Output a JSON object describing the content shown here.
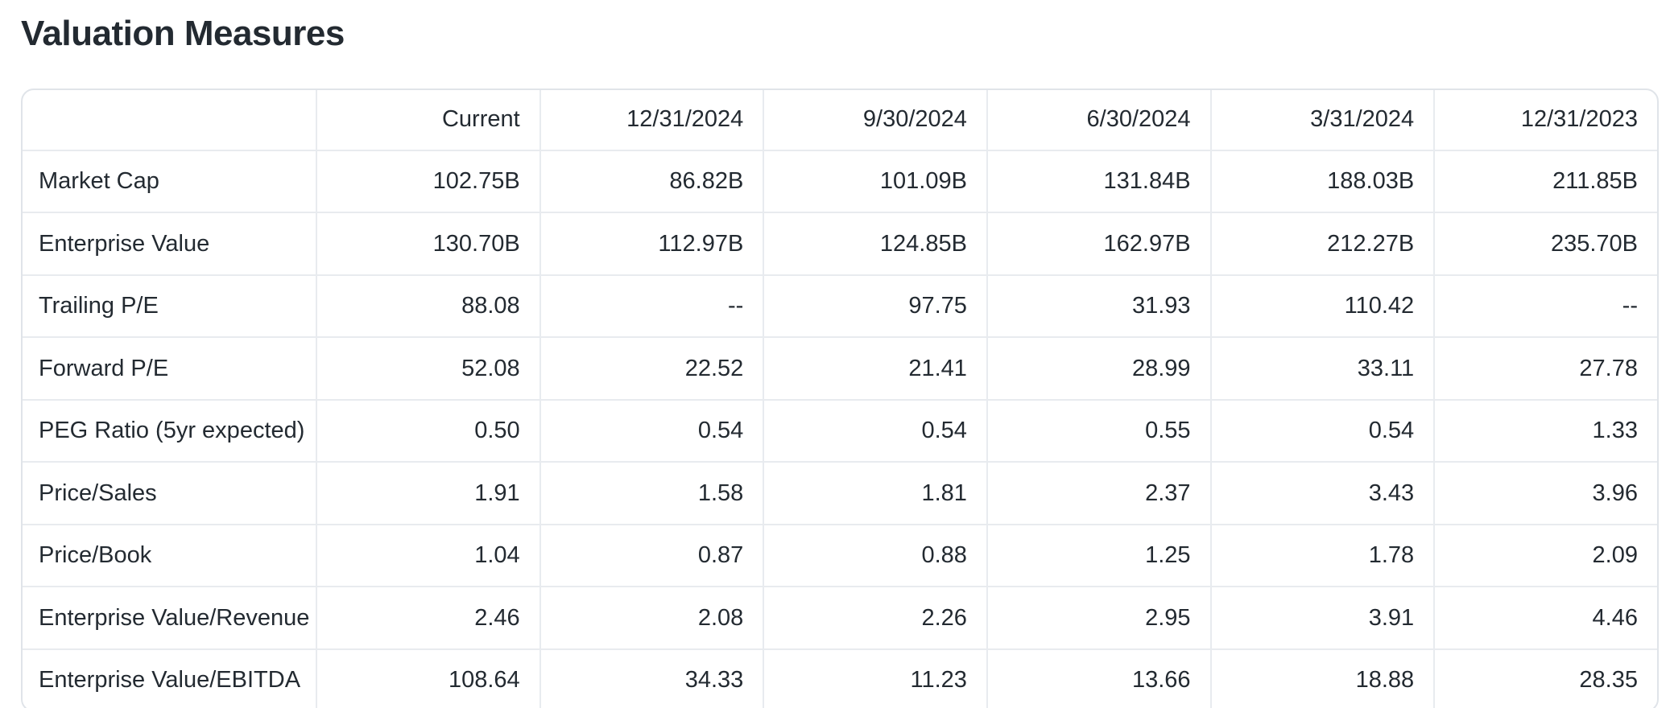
{
  "page": {
    "title": "Valuation Measures"
  },
  "colors": {
    "text": "#232a31",
    "border": "#e0e4e9",
    "background": "#ffffff"
  },
  "table": {
    "columns": [
      "",
      "Current",
      "12/31/2024",
      "9/30/2024",
      "6/30/2024",
      "3/31/2024",
      "12/31/2023"
    ],
    "rows": [
      {
        "label": "Market Cap",
        "values": [
          "102.75B",
          "86.82B",
          "101.09B",
          "131.84B",
          "188.03B",
          "211.85B"
        ]
      },
      {
        "label": "Enterprise Value",
        "values": [
          "130.70B",
          "112.97B",
          "124.85B",
          "162.97B",
          "212.27B",
          "235.70B"
        ]
      },
      {
        "label": "Trailing P/E",
        "values": [
          "88.08",
          "--",
          "97.75",
          "31.93",
          "110.42",
          "--"
        ]
      },
      {
        "label": "Forward P/E",
        "values": [
          "52.08",
          "22.52",
          "21.41",
          "28.99",
          "33.11",
          "27.78"
        ]
      },
      {
        "label": "PEG Ratio (5yr expected)",
        "values": [
          "0.50",
          "0.54",
          "0.54",
          "0.55",
          "0.54",
          "1.33"
        ]
      },
      {
        "label": "Price/Sales",
        "values": [
          "1.91",
          "1.58",
          "1.81",
          "2.37",
          "3.43",
          "3.96"
        ]
      },
      {
        "label": "Price/Book",
        "values": [
          "1.04",
          "0.87",
          "0.88",
          "1.25",
          "1.78",
          "2.09"
        ]
      },
      {
        "label": "Enterprise Value/Revenue",
        "values": [
          "2.46",
          "2.08",
          "2.26",
          "2.95",
          "3.91",
          "4.46"
        ]
      },
      {
        "label": "Enterprise Value/EBITDA",
        "values": [
          "108.64",
          "34.33",
          "11.23",
          "13.66",
          "18.88",
          "28.35"
        ]
      }
    ]
  }
}
